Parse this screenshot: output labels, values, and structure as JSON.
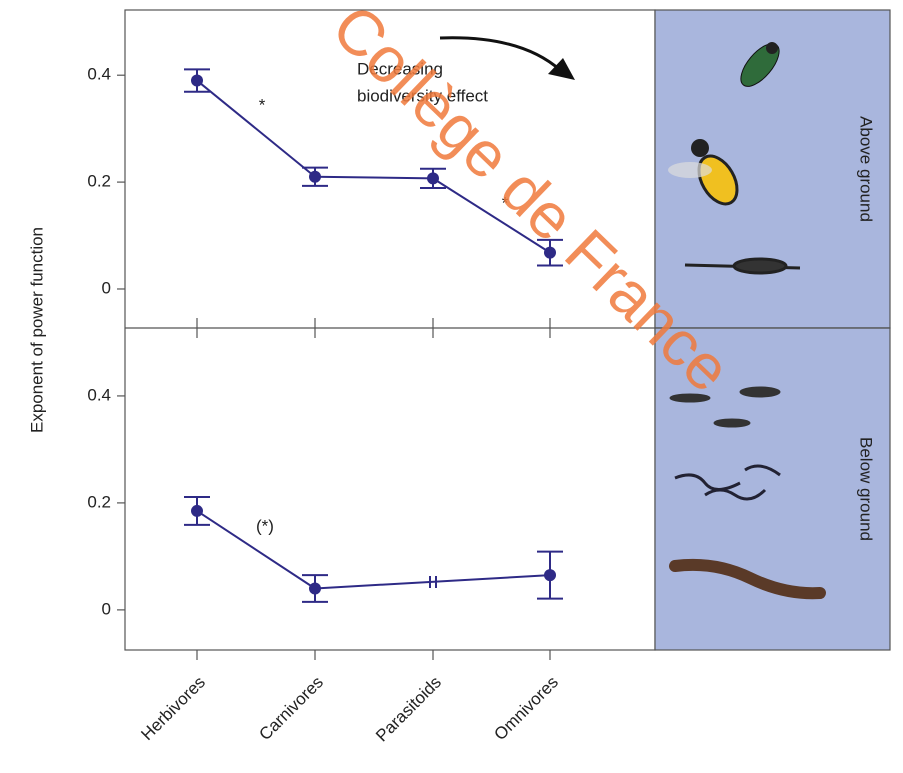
{
  "chart_data": {
    "type": "line",
    "y_label": "Exponent of power function",
    "categories": [
      "Herbivores",
      "Carnivores",
      "Parasitoids",
      "Omnivores"
    ],
    "color": "#2e2a86",
    "watermark": "Collège de France",
    "panels": [
      {
        "label": "Above ground",
        "ylim": [
          -0.073,
          0.522
        ],
        "yticks": [
          0.0,
          0.2,
          0.4
        ],
        "series": [
          {
            "values": [
              0.39,
              0.21,
              0.207,
              0.068
            ],
            "errors": [
              0.021,
              0.017,
              0.018,
              0.024
            ]
          }
        ],
        "annotations": [
          "*",
          "*"
        ],
        "note": [
          "Decreasing",
          "biodiversity effect"
        ]
      },
      {
        "label": "Below ground",
        "ylim": [
          -0.075,
          0.527
        ],
        "yticks": [
          0.0,
          0.2,
          0.4
        ],
        "series": [
          {
            "values": [
              0.185,
              0.04,
              null,
              0.065
            ],
            "errors": [
              0.026,
              0.025,
              null,
              0.044
            ]
          }
        ],
        "annotations": [
          "(*)"
        ]
      }
    ]
  }
}
